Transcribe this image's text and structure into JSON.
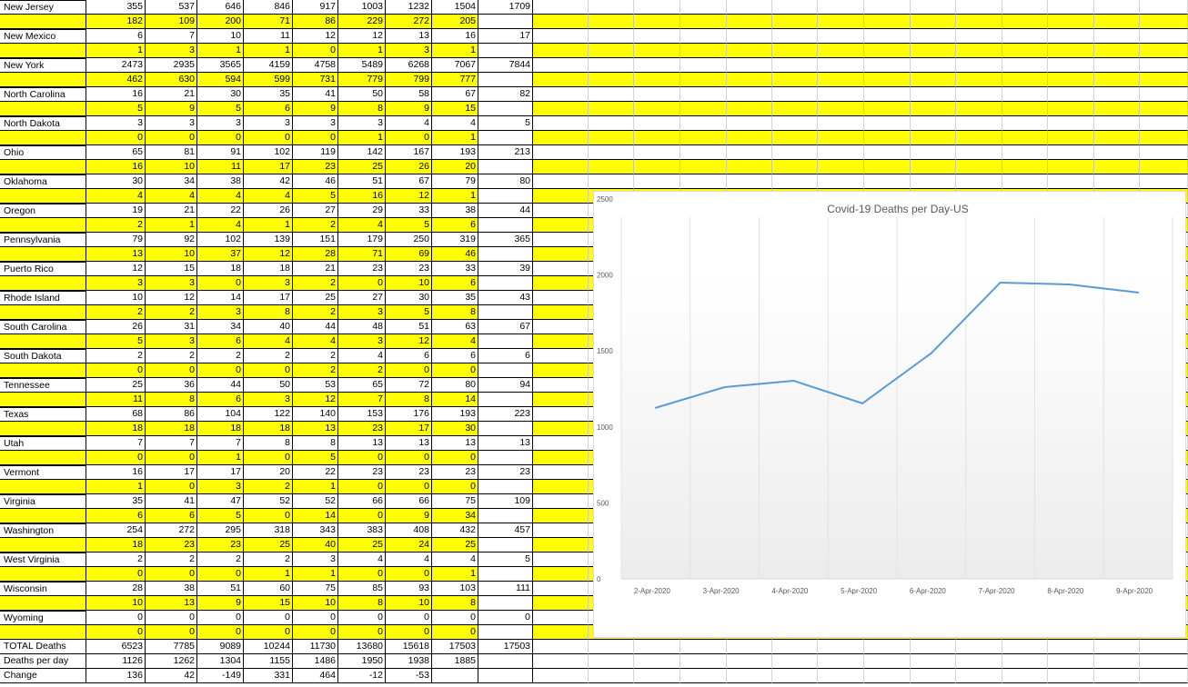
{
  "table": {
    "rows": [
      {
        "type": "state",
        "name": "New Jersey",
        "values": [
          "355",
          "537",
          "646",
          "846",
          "917",
          "1003",
          "1232",
          "1504",
          "1709"
        ]
      },
      {
        "type": "delta",
        "values": [
          "182",
          "109",
          "200",
          "71",
          "86",
          "229",
          "272",
          "205",
          ""
        ]
      },
      {
        "type": "state",
        "name": "New Mexico",
        "values": [
          "6",
          "7",
          "10",
          "11",
          "12",
          "12",
          "13",
          "16",
          "17"
        ]
      },
      {
        "type": "delta",
        "values": [
          "1",
          "3",
          "1",
          "1",
          "0",
          "1",
          "3",
          "1",
          ""
        ]
      },
      {
        "type": "state",
        "name": "New York",
        "values": [
          "2473",
          "2935",
          "3565",
          "4159",
          "4758",
          "5489",
          "6268",
          "7067",
          "7844"
        ]
      },
      {
        "type": "delta",
        "values": [
          "462",
          "630",
          "594",
          "599",
          "731",
          "779",
          "799",
          "777",
          ""
        ]
      },
      {
        "type": "state",
        "name": "North Carolina",
        "values": [
          "16",
          "21",
          "30",
          "35",
          "41",
          "50",
          "58",
          "67",
          "82"
        ]
      },
      {
        "type": "delta",
        "values": [
          "5",
          "9",
          "5",
          "6",
          "9",
          "8",
          "9",
          "15",
          ""
        ]
      },
      {
        "type": "state",
        "name": "North Dakota",
        "values": [
          "3",
          "3",
          "3",
          "3",
          "3",
          "3",
          "4",
          "4",
          "5"
        ]
      },
      {
        "type": "delta",
        "values": [
          "0",
          "0",
          "0",
          "0",
          "0",
          "1",
          "0",
          "1",
          ""
        ]
      },
      {
        "type": "state",
        "name": "Ohio",
        "values": [
          "65",
          "81",
          "91",
          "102",
          "119",
          "142",
          "167",
          "193",
          "213"
        ]
      },
      {
        "type": "delta",
        "values": [
          "16",
          "10",
          "11",
          "17",
          "23",
          "25",
          "26",
          "20",
          ""
        ]
      },
      {
        "type": "state",
        "name": "Oklahoma",
        "values": [
          "30",
          "34",
          "38",
          "42",
          "46",
          "51",
          "67",
          "79",
          "80"
        ]
      },
      {
        "type": "delta",
        "values": [
          "4",
          "4",
          "4",
          "4",
          "5",
          "16",
          "12",
          "1",
          ""
        ]
      },
      {
        "type": "state",
        "name": "Oregon",
        "values": [
          "19",
          "21",
          "22",
          "26",
          "27",
          "29",
          "33",
          "38",
          "44"
        ]
      },
      {
        "type": "delta",
        "values": [
          "2",
          "1",
          "4",
          "1",
          "2",
          "4",
          "5",
          "6",
          ""
        ]
      },
      {
        "type": "state",
        "name": "Pennsylvania",
        "values": [
          "79",
          "92",
          "102",
          "139",
          "151",
          "179",
          "250",
          "319",
          "365"
        ]
      },
      {
        "type": "delta",
        "values": [
          "13",
          "10",
          "37",
          "12",
          "28",
          "71",
          "69",
          "46",
          ""
        ]
      },
      {
        "type": "state",
        "name": "Puerto Rico",
        "values": [
          "12",
          "15",
          "18",
          "18",
          "21",
          "23",
          "23",
          "33",
          "39"
        ]
      },
      {
        "type": "delta",
        "values": [
          "3",
          "3",
          "0",
          "3",
          "2",
          "0",
          "10",
          "6",
          ""
        ]
      },
      {
        "type": "state",
        "name": "Rhode Island",
        "values": [
          "10",
          "12",
          "14",
          "17",
          "25",
          "27",
          "30",
          "35",
          "43"
        ]
      },
      {
        "type": "delta",
        "values": [
          "2",
          "2",
          "3",
          "8",
          "2",
          "3",
          "5",
          "8",
          ""
        ]
      },
      {
        "type": "state",
        "name": "South Carolina",
        "values": [
          "26",
          "31",
          "34",
          "40",
          "44",
          "48",
          "51",
          "63",
          "67"
        ]
      },
      {
        "type": "delta",
        "values": [
          "5",
          "3",
          "6",
          "4",
          "4",
          "3",
          "12",
          "4",
          ""
        ]
      },
      {
        "type": "state",
        "name": "South Dakota",
        "values": [
          "2",
          "2",
          "2",
          "2",
          "2",
          "4",
          "6",
          "6",
          "6"
        ]
      },
      {
        "type": "delta",
        "values": [
          "0",
          "0",
          "0",
          "0",
          "2",
          "2",
          "0",
          "0",
          ""
        ]
      },
      {
        "type": "state",
        "name": "Tennessee",
        "values": [
          "25",
          "36",
          "44",
          "50",
          "53",
          "65",
          "72",
          "80",
          "94"
        ]
      },
      {
        "type": "delta",
        "values": [
          "11",
          "8",
          "6",
          "3",
          "12",
          "7",
          "8",
          "14",
          ""
        ]
      },
      {
        "type": "state",
        "name": "Texas",
        "values": [
          "68",
          "86",
          "104",
          "122",
          "140",
          "153",
          "176",
          "193",
          "223"
        ]
      },
      {
        "type": "delta",
        "values": [
          "18",
          "18",
          "18",
          "18",
          "13",
          "23",
          "17",
          "30",
          ""
        ]
      },
      {
        "type": "state",
        "name": "Utah",
        "values": [
          "7",
          "7",
          "7",
          "8",
          "8",
          "13",
          "13",
          "13",
          "13"
        ]
      },
      {
        "type": "delta",
        "values": [
          "0",
          "0",
          "1",
          "0",
          "5",
          "0",
          "0",
          "0",
          ""
        ]
      },
      {
        "type": "state",
        "name": "Vermont",
        "values": [
          "16",
          "17",
          "17",
          "20",
          "22",
          "23",
          "23",
          "23",
          "23"
        ]
      },
      {
        "type": "delta",
        "values": [
          "1",
          "0",
          "3",
          "2",
          "1",
          "0",
          "0",
          "0",
          ""
        ]
      },
      {
        "type": "state",
        "name": "Virginia",
        "values": [
          "35",
          "41",
          "47",
          "52",
          "52",
          "66",
          "66",
          "75",
          "109"
        ]
      },
      {
        "type": "delta",
        "values": [
          "6",
          "6",
          "5",
          "0",
          "14",
          "0",
          "9",
          "34",
          ""
        ]
      },
      {
        "type": "state",
        "name": "Washington",
        "values": [
          "254",
          "272",
          "295",
          "318",
          "343",
          "383",
          "408",
          "432",
          "457"
        ]
      },
      {
        "type": "delta",
        "values": [
          "18",
          "23",
          "23",
          "25",
          "40",
          "25",
          "24",
          "25",
          ""
        ]
      },
      {
        "type": "state",
        "name": "West Virginia",
        "values": [
          "2",
          "2",
          "2",
          "2",
          "3",
          "4",
          "4",
          "4",
          "5"
        ]
      },
      {
        "type": "delta",
        "values": [
          "0",
          "0",
          "0",
          "1",
          "1",
          "0",
          "0",
          "1",
          ""
        ]
      },
      {
        "type": "state",
        "name": "Wisconsin",
        "values": [
          "28",
          "38",
          "51",
          "60",
          "75",
          "85",
          "93",
          "103",
          "111"
        ]
      },
      {
        "type": "delta",
        "values": [
          "10",
          "13",
          "9",
          "15",
          "10",
          "8",
          "10",
          "8",
          ""
        ]
      },
      {
        "type": "state",
        "name": "Wyoming",
        "values": [
          "0",
          "0",
          "0",
          "0",
          "0",
          "0",
          "0",
          "0",
          "0"
        ]
      },
      {
        "type": "delta",
        "values": [
          "0",
          "0",
          "0",
          "0",
          "0",
          "0",
          "0",
          "0",
          ""
        ]
      },
      {
        "type": "total",
        "name": "TOTAL Deaths",
        "values": [
          "6523",
          "7785",
          "9089",
          "10244",
          "11730",
          "13680",
          "15618",
          "17503",
          "17503"
        ]
      },
      {
        "type": "total",
        "name": "Deaths per day",
        "values": [
          "1126",
          "1262",
          "1304",
          "1155",
          "1486",
          "1950",
          "1938",
          "1885",
          ""
        ]
      },
      {
        "type": "total",
        "name": "Change",
        "values": [
          "136",
          "42",
          "-149",
          "331",
          "464",
          "-12",
          "-53",
          "",
          ""
        ]
      }
    ]
  },
  "chart_data": {
    "type": "line",
    "title": "Covid-19 Deaths per Day-US",
    "categories": [
      "2-Apr-2020",
      "3-Apr-2020",
      "4-Apr-2020",
      "5-Apr-2020",
      "6-Apr-2020",
      "7-Apr-2020",
      "8-Apr-2020",
      "9-Apr-2020"
    ],
    "series": [
      {
        "values": [
          1126,
          1262,
          1304,
          1155,
          1486,
          1950,
          1938,
          1885
        ]
      }
    ],
    "ylim": [
      0,
      2500
    ],
    "yticks": [
      "0",
      "500",
      "1000",
      "1500",
      "2000",
      "2500"
    ],
    "line_color": "#5b9bd5",
    "grid": "vertical"
  },
  "colors": {
    "highlight": "#ffff00"
  }
}
